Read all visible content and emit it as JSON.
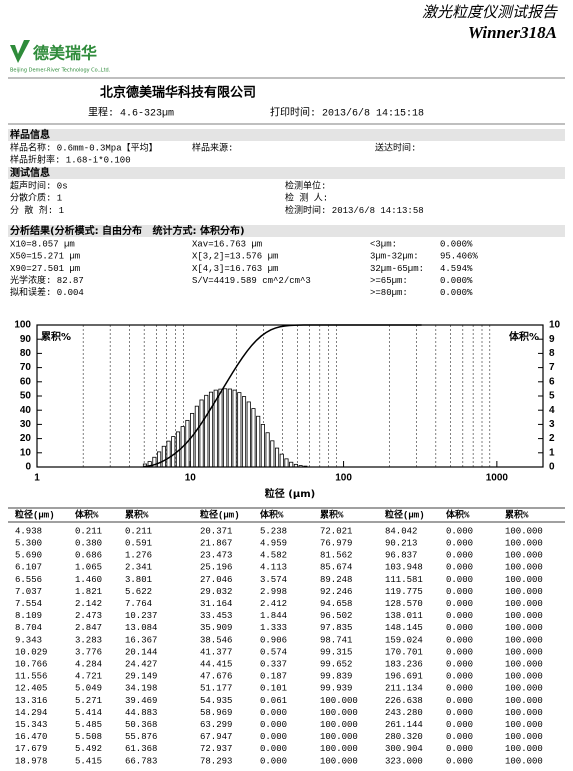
{
  "header": {
    "title": "激光粒度仪测试报告",
    "model": "Winner318A",
    "logo_text": "德美瑞华",
    "logo_subtext": "Beijing Demer-River Technology Co.,Ltd.",
    "company": "北京德美瑞华科技有限公司",
    "range": "里程: 4.6-323µm",
    "print_time": "打印时间: 2013/6/8 14:15:18"
  },
  "sections": [
    {
      "title": "样品信息",
      "columns": [
        [
          "样品名称: 0.6mm-0.3Mpa【平均】",
          "样品折射率: 1.68-i*0.100"
        ],
        [
          "样品来源:"
        ],
        [
          "送达时间:"
        ]
      ]
    },
    {
      "title": "测试信息",
      "columns": [
        [
          "超声时间: 0s",
          "分散介质: 1",
          "分 散 剂: 1"
        ],
        [
          "检测单位:",
          "检 测 人:",
          "检测时间: 2013/6/8 14:13:58"
        ]
      ]
    },
    {
      "title": "分析结果(分析模式: 自由分布   统计方式: 体积分布)",
      "columns": [
        [
          "X10=8.057 µm",
          "X50=15.271 µm",
          "X90=27.501 µm",
          "光学浓度: 82.87",
          "拟和误差: 0.004"
        ],
        [
          "Xav=16.763 µm",
          "X[3,2]=13.576 µm",
          "X[4,3]=16.763 µm",
          "S/V=4419.589 cm^2/cm^3"
        ],
        [
          "<3µm:",
          "3µm-32µm:",
          "32µm-65µm:",
          ">=65µm:",
          ">=80µm:"
        ],
        [
          "0.000%",
          "95.406%",
          "4.594%",
          "0.000%",
          "0.000%"
        ]
      ]
    }
  ],
  "chart": {
    "y_label_left": "累积%",
    "y_label_right": "体积%",
    "x_label": "粒径 (µm)",
    "log_x": true,
    "xlim": [
      1,
      2000
    ],
    "xticks": [
      1,
      10,
      100,
      1000
    ],
    "xgrid_minor": [
      2,
      3,
      4,
      5,
      6,
      7,
      8,
      9,
      20,
      30,
      40,
      50,
      60,
      70,
      80,
      90,
      200,
      300,
      400,
      500,
      600,
      700,
      800,
      900
    ],
    "ylim": [
      0,
      100
    ],
    "yticks": [
      0,
      10,
      20,
      30,
      40,
      50,
      60,
      70,
      80,
      90,
      100
    ],
    "y2lim": [
      0,
      10
    ],
    "y2ticks": [
      0,
      1,
      2,
      3,
      4,
      5,
      6,
      7,
      8,
      9,
      10
    ]
  },
  "table": {
    "headers": [
      "粒径(µm)",
      "体积%",
      "累积%"
    ],
    "rows": [
      [
        "4.938",
        "0.211",
        "0.211"
      ],
      [
        "5.300",
        "0.380",
        "0.591"
      ],
      [
        "5.690",
        "0.686",
        "1.276"
      ],
      [
        "6.107",
        "1.065",
        "2.341"
      ],
      [
        "6.556",
        "1.460",
        "3.801"
      ],
      [
        "7.037",
        "1.821",
        "5.622"
      ],
      [
        "7.554",
        "2.142",
        "7.764"
      ],
      [
        "8.109",
        "2.473",
        "10.237"
      ],
      [
        "8.704",
        "2.847",
        "13.084"
      ],
      [
        "9.343",
        "3.283",
        "16.367"
      ],
      [
        "10.029",
        "3.776",
        "20.144"
      ],
      [
        "10.766",
        "4.284",
        "24.427"
      ],
      [
        "11.556",
        "4.721",
        "29.149"
      ],
      [
        "12.405",
        "5.049",
        "34.198"
      ],
      [
        "13.316",
        "5.271",
        "39.469"
      ],
      [
        "14.294",
        "5.414",
        "44.883"
      ],
      [
        "15.343",
        "5.485",
        "50.368"
      ],
      [
        "16.470",
        "5.508",
        "55.876"
      ],
      [
        "17.679",
        "5.492",
        "61.368"
      ],
      [
        "18.978",
        "5.415",
        "66.783"
      ],
      [
        "20.371",
        "5.238",
        "72.021"
      ],
      [
        "21.867",
        "4.959",
        "76.979"
      ],
      [
        "23.473",
        "4.582",
        "81.562"
      ],
      [
        "25.196",
        "4.113",
        "85.674"
      ],
      [
        "27.046",
        "3.574",
        "89.248"
      ],
      [
        "29.032",
        "2.998",
        "92.246"
      ],
      [
        "31.164",
        "2.412",
        "94.658"
      ],
      [
        "33.453",
        "1.844",
        "96.502"
      ],
      [
        "35.909",
        "1.333",
        "97.835"
      ],
      [
        "38.546",
        "0.906",
        "98.741"
      ],
      [
        "41.377",
        "0.574",
        "99.315"
      ],
      [
        "44.415",
        "0.337",
        "99.652"
      ],
      [
        "47.676",
        "0.187",
        "99.839"
      ],
      [
        "51.177",
        "0.101",
        "99.939"
      ],
      [
        "54.935",
        "0.061",
        "100.000"
      ],
      [
        "58.969",
        "0.000",
        "100.000"
      ],
      [
        "63.299",
        "0.000",
        "100.000"
      ],
      [
        "67.947",
        "0.000",
        "100.000"
      ],
      [
        "72.937",
        "0.000",
        "100.000"
      ],
      [
        "78.293",
        "0.000",
        "100.000"
      ],
      [
        "84.042",
        "0.000",
        "100.000"
      ],
      [
        "90.213",
        "0.000",
        "100.000"
      ],
      [
        "96.837",
        "0.000",
        "100.000"
      ],
      [
        "103.948",
        "0.000",
        "100.000"
      ],
      [
        "111.581",
        "0.000",
        "100.000"
      ],
      [
        "119.775",
        "0.000",
        "100.000"
      ],
      [
        "128.570",
        "0.000",
        "100.000"
      ],
      [
        "138.011",
        "0.000",
        "100.000"
      ],
      [
        "148.145",
        "0.000",
        "100.000"
      ],
      [
        "159.024",
        "0.000",
        "100.000"
      ],
      [
        "170.701",
        "0.000",
        "100.000"
      ],
      [
        "183.236",
        "0.000",
        "100.000"
      ],
      [
        "196.691",
        "0.000",
        "100.000"
      ],
      [
        "211.134",
        "0.000",
        "100.000"
      ],
      [
        "226.638",
        "0.000",
        "100.000"
      ],
      [
        "243.280",
        "0.000",
        "100.000"
      ],
      [
        "261.144",
        "0.000",
        "100.000"
      ],
      [
        "280.320",
        "0.000",
        "100.000"
      ],
      [
        "300.904",
        "0.000",
        "100.000"
      ],
      [
        "323.000",
        "0.000",
        "100.000"
      ]
    ]
  }
}
